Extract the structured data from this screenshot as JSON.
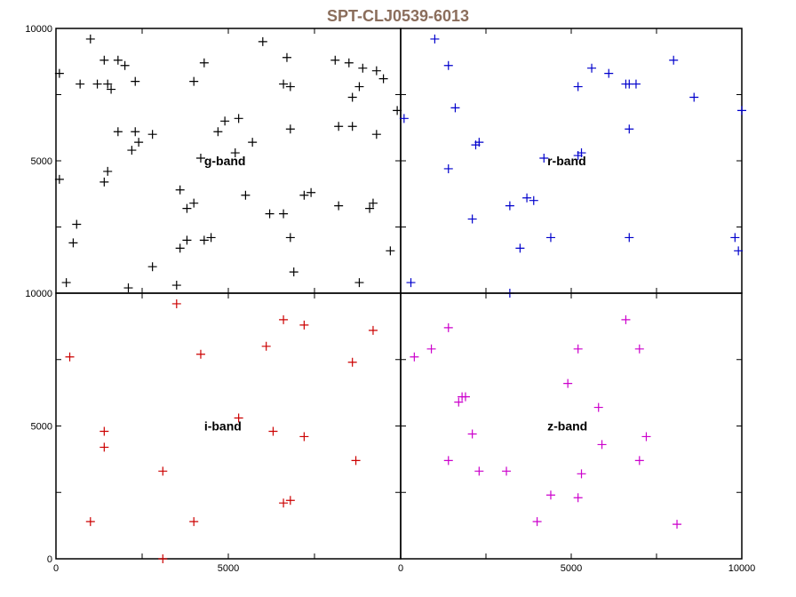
{
  "title": "SPT-CLJ0539-6013",
  "title_color": "#8b6e5c",
  "chart_data": {
    "type": "scatter",
    "xlim": [
      0,
      10000
    ],
    "ylim": [
      0,
      10000
    ],
    "grid": false,
    "marker": "plus",
    "panels": [
      {
        "name": "g-band",
        "label_pos": [
          4300,
          5000
        ],
        "color": "#000000",
        "x_ticks": [],
        "x_tick_labels": [],
        "y_ticks": [
          5000,
          10000
        ],
        "y_tick_labels": [
          "5000",
          "10000"
        ],
        "points": [
          [
            100,
            8300
          ],
          [
            1000,
            9600
          ],
          [
            700,
            7900
          ],
          [
            1200,
            7900
          ],
          [
            1400,
            8800
          ],
          [
            1500,
            7900
          ],
          [
            1600,
            7700
          ],
          [
            1800,
            8800
          ],
          [
            2000,
            8600
          ],
          [
            2300,
            8000
          ],
          [
            1800,
            6100
          ],
          [
            2300,
            6100
          ],
          [
            2400,
            5700
          ],
          [
            2200,
            5400
          ],
          [
            2800,
            6000
          ],
          [
            1500,
            4600
          ],
          [
            1400,
            4200
          ],
          [
            100,
            4300
          ],
          [
            600,
            2600
          ],
          [
            500,
            1900
          ],
          [
            300,
            400
          ],
          [
            2100,
            200
          ],
          [
            2800,
            1000
          ],
          [
            3600,
            3900
          ],
          [
            3800,
            3200
          ],
          [
            4000,
            3400
          ],
          [
            3600,
            1700
          ],
          [
            3800,
            2000
          ],
          [
            4300,
            2000
          ],
          [
            4500,
            2100
          ],
          [
            3500,
            300
          ],
          [
            4200,
            5100
          ],
          [
            4700,
            6100
          ],
          [
            4900,
            6500
          ],
          [
            5300,
            6600
          ],
          [
            5200,
            5300
          ],
          [
            5700,
            5700
          ],
          [
            5500,
            3700
          ],
          [
            4000,
            8000
          ],
          [
            4300,
            8700
          ],
          [
            6000,
            9500
          ],
          [
            6600,
            7900
          ],
          [
            6800,
            7800
          ],
          [
            6700,
            8900
          ],
          [
            6800,
            6200
          ],
          [
            6200,
            3000
          ],
          [
            6600,
            3000
          ],
          [
            6800,
            2100
          ],
          [
            6900,
            800
          ],
          [
            7200,
            3700
          ],
          [
            7400,
            3800
          ],
          [
            8100,
            8800
          ],
          [
            8500,
            8700
          ],
          [
            8600,
            7400
          ],
          [
            8800,
            7800
          ],
          [
            8900,
            8500
          ],
          [
            9300,
            8400
          ],
          [
            9500,
            8100
          ],
          [
            8200,
            6300
          ],
          [
            8600,
            6300
          ],
          [
            9300,
            6000
          ],
          [
            8200,
            3300
          ],
          [
            9100,
            3200
          ],
          [
            9200,
            3400
          ],
          [
            8800,
            400
          ],
          [
            9700,
            1600
          ],
          [
            9900,
            6900
          ]
        ]
      },
      {
        "name": "r-band",
        "label_pos": [
          4300,
          5000
        ],
        "color": "#0000cc",
        "x_ticks": [],
        "x_tick_labels": [],
        "y_ticks": [],
        "y_tick_labels": [],
        "points": [
          [
            1000,
            9600
          ],
          [
            1400,
            8600
          ],
          [
            1600,
            7000
          ],
          [
            1400,
            4700
          ],
          [
            2200,
            5600
          ],
          [
            2300,
            5700
          ],
          [
            2100,
            2800
          ],
          [
            3200,
            3300
          ],
          [
            3700,
            3600
          ],
          [
            3900,
            3500
          ],
          [
            4200,
            5100
          ],
          [
            4400,
            2100
          ],
          [
            3500,
            1700
          ],
          [
            3200,
            0
          ],
          [
            300,
            400
          ],
          [
            100,
            6600
          ],
          [
            5200,
            7800
          ],
          [
            5300,
            5300
          ],
          [
            5200,
            5200
          ],
          [
            5600,
            8500
          ],
          [
            6100,
            8300
          ],
          [
            6600,
            7900
          ],
          [
            6700,
            7900
          ],
          [
            6900,
            7900
          ],
          [
            6700,
            6200
          ],
          [
            6700,
            2100
          ],
          [
            8000,
            8800
          ],
          [
            8600,
            7400
          ],
          [
            9800,
            2100
          ],
          [
            9900,
            1600
          ],
          [
            10000,
            6900
          ]
        ]
      },
      {
        "name": "i-band",
        "label_pos": [
          4300,
          5000
        ],
        "color": "#cc0000",
        "x_ticks": [
          0,
          5000
        ],
        "x_tick_labels": [
          "0",
          "5000"
        ],
        "y_ticks": [
          0,
          5000,
          10000
        ],
        "y_tick_labels": [
          "0",
          "5000",
          "10000"
        ],
        "points": [
          [
            400,
            7600
          ],
          [
            1400,
            4800
          ],
          [
            1400,
            4200
          ],
          [
            1000,
            1400
          ],
          [
            3100,
            3300
          ],
          [
            3100,
            0
          ],
          [
            3500,
            9600
          ],
          [
            4200,
            7700
          ],
          [
            4000,
            1400
          ],
          [
            5300,
            5300
          ],
          [
            6100,
            8000
          ],
          [
            6300,
            4800
          ],
          [
            6600,
            9000
          ],
          [
            6600,
            2100
          ],
          [
            6800,
            2200
          ],
          [
            7200,
            8800
          ],
          [
            7200,
            4600
          ],
          [
            8600,
            7400
          ],
          [
            8700,
            3700
          ],
          [
            9200,
            8600
          ]
        ]
      },
      {
        "name": "z-band",
        "label_pos": [
          4300,
          5000
        ],
        "color": "#cc00cc",
        "x_ticks": [
          0,
          5000,
          10000
        ],
        "x_tick_labels": [
          "0",
          "5000",
          "10000"
        ],
        "y_ticks": [],
        "y_tick_labels": [],
        "points": [
          [
            400,
            7600
          ],
          [
            900,
            7900
          ],
          [
            1400,
            8700
          ],
          [
            1400,
            3700
          ],
          [
            1700,
            5900
          ],
          [
            1800,
            6100
          ],
          [
            1900,
            6100
          ],
          [
            2100,
            4700
          ],
          [
            2300,
            3300
          ],
          [
            3100,
            3300
          ],
          [
            4400,
            2400
          ],
          [
            4000,
            1400
          ],
          [
            4900,
            6600
          ],
          [
            5200,
            7900
          ],
          [
            5200,
            2300
          ],
          [
            5300,
            3200
          ],
          [
            5800,
            5700
          ],
          [
            5900,
            4300
          ],
          [
            6600,
            9000
          ],
          [
            7000,
            7900
          ],
          [
            7000,
            3700
          ],
          [
            7200,
            4600
          ],
          [
            8100,
            1300
          ]
        ]
      }
    ]
  }
}
